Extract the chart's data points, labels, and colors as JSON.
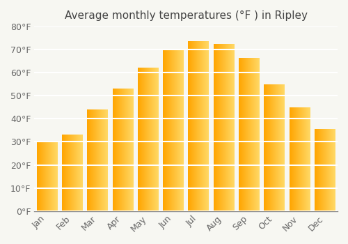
{
  "title": "Average monthly temperatures (°F ) in Ripley",
  "months": [
    "Jan",
    "Feb",
    "Mar",
    "Apr",
    "May",
    "Jun",
    "Jul",
    "Aug",
    "Sep",
    "Oct",
    "Nov",
    "Dec"
  ],
  "values": [
    30,
    33,
    44,
    53,
    62,
    70,
    73.5,
    72.5,
    66.5,
    55,
    45,
    35.5
  ],
  "bar_color_left": "#FFA500",
  "bar_color_right": "#FFD966",
  "ylim": [
    0,
    80
  ],
  "yticks": [
    0,
    10,
    20,
    30,
    40,
    50,
    60,
    70,
    80
  ],
  "ytick_labels": [
    "0°F",
    "10°F",
    "20°F",
    "30°F",
    "40°F",
    "50°F",
    "60°F",
    "70°F",
    "80°F"
  ],
  "title_fontsize": 11,
  "tick_fontsize": 9,
  "background_color": "#f7f7f2",
  "grid_color": "#e0e0e0",
  "title_color": "#444444",
  "tick_color": "#666666"
}
